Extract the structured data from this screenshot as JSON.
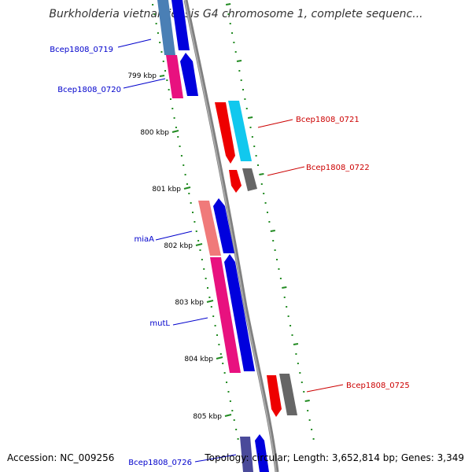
{
  "title": "Burkholderia vietnamiensis G4 chromosome 1, complete sequenc...",
  "footer": {
    "accession": "Accession: NC_009256",
    "summary": "Topology: circular; Length: 3,652,814 bp; Genes: 3,349"
  },
  "colors": {
    "backbone": "#808080",
    "tick": "#228b22",
    "left_label": "#0000cc",
    "right_label": "#cc0000"
  },
  "scale_labels": [
    "799 kbp",
    "800 kbp",
    "801 kbp",
    "802 kbp",
    "803 kbp",
    "804 kbp",
    "805 kbp"
  ],
  "genes": [
    {
      "label": "Bcep1808_0719",
      "side": "left",
      "colors": [
        "#4a7fb5",
        "#0000dd"
      ]
    },
    {
      "label": "Bcep1808_0720",
      "side": "left",
      "colors": [
        "#e8117f",
        "#0000dd"
      ]
    },
    {
      "label": "Bcep1808_0721",
      "side": "right",
      "colors": [
        "#ee0000",
        "#11c8ee"
      ]
    },
    {
      "label": "Bcep1808_0722",
      "side": "right",
      "colors": [
        "#ee0000",
        "#666666"
      ]
    },
    {
      "label": "miaA",
      "side": "left",
      "colors": [
        "#f07a7a",
        "#0000dd"
      ]
    },
    {
      "label": "mutL",
      "side": "left",
      "colors": [
        "#e8117f",
        "#0000dd"
      ]
    },
    {
      "label": "Bcep1808_0725",
      "side": "right",
      "colors": [
        "#ee0000",
        "#666666"
      ]
    },
    {
      "label": "Bcep1808_0726",
      "side": "left",
      "colors": [
        "#4a4a9a",
        "#0000dd"
      ]
    }
  ]
}
